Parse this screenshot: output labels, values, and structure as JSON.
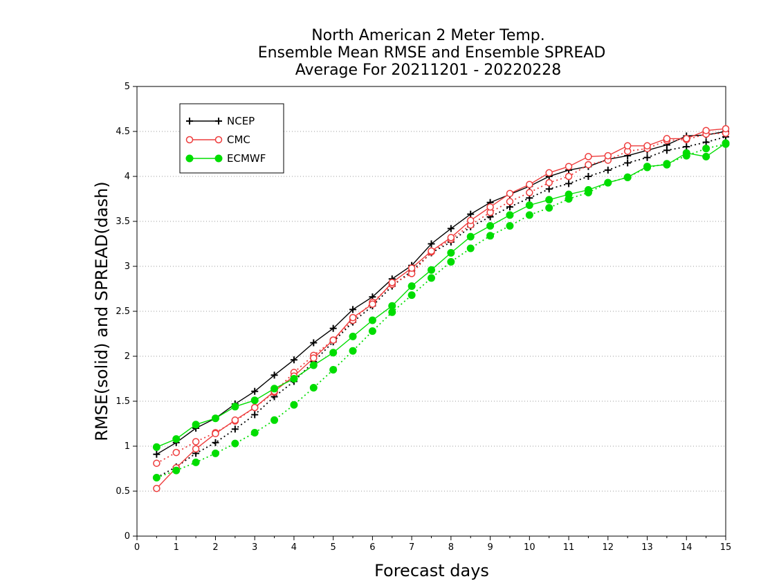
{
  "chart_data": {
    "type": "line",
    "title": [
      "North American 2 Meter Temp.",
      "Ensemble Mean RMSE and Ensemble SPREAD",
      "Average For 20211201 - 20220228"
    ],
    "xlabel": "Forecast days",
    "ylabel": "RMSE(solid) and SPREAD(dash)",
    "xlim": [
      0,
      15
    ],
    "ylim": [
      0,
      5
    ],
    "xticks": [
      0,
      1,
      2,
      3,
      4,
      5,
      6,
      7,
      8,
      9,
      10,
      11,
      12,
      13,
      14,
      15
    ],
    "yticks": [
      0,
      0.5,
      1,
      1.5,
      2,
      2.5,
      3,
      3.5,
      4,
      4.5,
      5
    ],
    "ytick_labels": [
      "0",
      "0.5",
      "1",
      "1.5",
      "2",
      "2.5",
      "3",
      "3.5",
      "4",
      "4.5",
      "5"
    ],
    "grid": "horizontal dotted",
    "legend_position": "top-left",
    "x": [
      0.5,
      1,
      1.5,
      2,
      2.5,
      3,
      3.5,
      4,
      4.5,
      5,
      5.5,
      6,
      6.5,
      7,
      7.5,
      8,
      8.5,
      9,
      9.5,
      10,
      10.5,
      11,
      11.5,
      12,
      12.5,
      13,
      13.5,
      14,
      14.5,
      15
    ],
    "series": [
      {
        "name": "NCEP",
        "color": "#000000",
        "marker": "plus",
        "rmse": [
          0.91,
          1.04,
          1.2,
          1.31,
          1.47,
          1.61,
          1.79,
          1.96,
          2.15,
          2.31,
          2.52,
          2.66,
          2.86,
          3.01,
          3.25,
          3.42,
          3.58,
          3.71,
          3.8,
          3.89,
          4.0,
          4.07,
          4.11,
          4.19,
          4.23,
          4.29,
          4.35,
          4.45,
          4.46,
          4.5
        ],
        "spread": [
          0.65,
          0.77,
          0.92,
          1.04,
          1.19,
          1.35,
          1.55,
          1.72,
          1.94,
          2.16,
          2.38,
          2.56,
          2.78,
          2.95,
          3.15,
          3.27,
          3.44,
          3.55,
          3.66,
          3.76,
          3.86,
          3.92,
          4.0,
          4.07,
          4.15,
          4.21,
          4.29,
          4.33,
          4.38,
          4.44
        ]
      },
      {
        "name": "CMC",
        "color": "#ee3b3b",
        "marker": "open-circle",
        "rmse": [
          0.53,
          0.76,
          0.97,
          1.14,
          1.29,
          1.43,
          1.61,
          1.78,
          1.98,
          2.18,
          2.43,
          2.58,
          2.82,
          2.98,
          3.17,
          3.32,
          3.51,
          3.66,
          3.81,
          3.91,
          4.04,
          4.11,
          4.22,
          4.23,
          4.34,
          4.34,
          4.42,
          4.42,
          4.51,
          4.53
        ],
        "spread": [
          0.81,
          0.93,
          1.05,
          1.15,
          1.28,
          1.43,
          1.6,
          1.82,
          2.01,
          2.18,
          2.4,
          2.6,
          2.8,
          2.92,
          3.16,
          3.3,
          3.46,
          3.6,
          3.72,
          3.82,
          3.93,
          4.0,
          4.13,
          4.18,
          4.28,
          4.31,
          4.4,
          4.41,
          4.47,
          4.48
        ]
      },
      {
        "name": "ECMWF",
        "color": "#00dd00",
        "marker": "filled-circle",
        "rmse": [
          0.99,
          1.08,
          1.24,
          1.31,
          1.44,
          1.51,
          1.64,
          1.75,
          1.9,
          2.04,
          2.22,
          2.4,
          2.56,
          2.78,
          2.96,
          3.15,
          3.33,
          3.45,
          3.57,
          3.68,
          3.74,
          3.8,
          3.85,
          3.93,
          3.99,
          4.11,
          4.13,
          4.26,
          4.22,
          4.37
        ],
        "spread": [
          0.65,
          0.73,
          0.82,
          0.92,
          1.03,
          1.15,
          1.29,
          1.46,
          1.65,
          1.85,
          2.06,
          2.28,
          2.49,
          2.68,
          2.87,
          3.05,
          3.2,
          3.34,
          3.45,
          3.57,
          3.65,
          3.75,
          3.82,
          3.93,
          3.99,
          4.1,
          4.14,
          4.23,
          4.31,
          4.36
        ]
      }
    ]
  }
}
